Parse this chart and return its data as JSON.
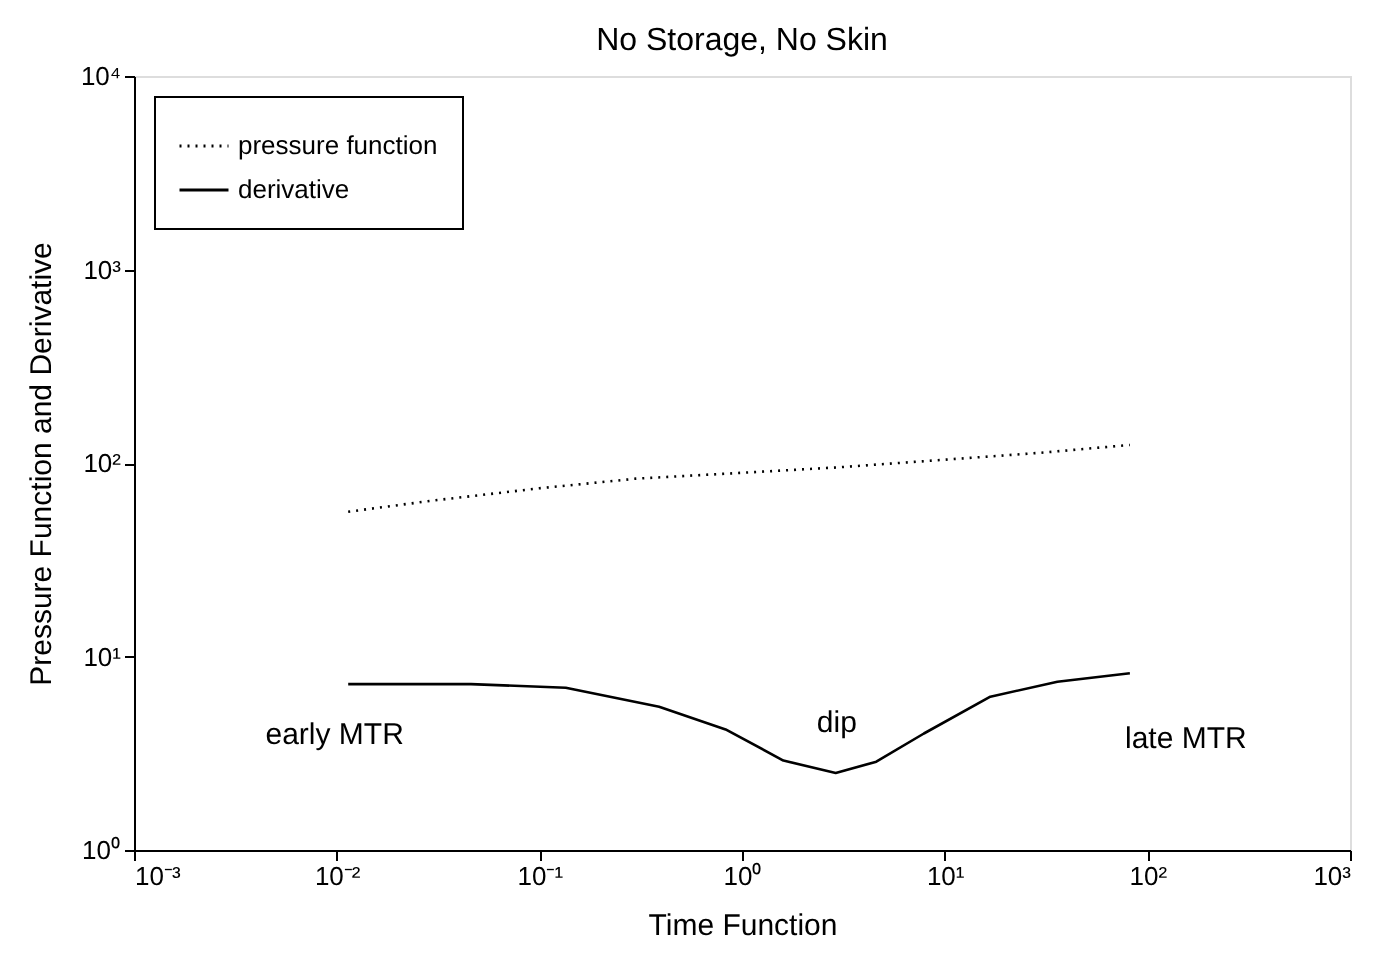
{
  "chart_data": {
    "type": "line",
    "title": "No Storage, No Skin",
    "xlabel": "Time Function",
    "ylabel": "Pressure Function and Derivative",
    "log": "xy",
    "grid": false,
    "legend": "top left",
    "xlim": [
      0.001,
      1000
    ],
    "ylim": [
      1,
      10000
    ],
    "xticks": [
      {
        "value": 0.001,
        "label": "10⁻³"
      },
      {
        "value": 0.01,
        "label": "10⁻²"
      },
      {
        "value": 0.1,
        "label": "10⁻¹"
      },
      {
        "value": 1,
        "label": "10⁰"
      },
      {
        "value": 10,
        "label": "10¹"
      },
      {
        "value": 100,
        "label": "10²"
      },
      {
        "value": 1000,
        "label": "10³"
      }
    ],
    "yticks": [
      {
        "value": 1,
        "label": "10⁰"
      },
      {
        "value": 10,
        "label": "10¹"
      },
      {
        "value": 100,
        "label": "10²"
      },
      {
        "value": 1000,
        "label": "10³"
      },
      {
        "value": 10000,
        "label": "10⁴"
      }
    ],
    "series": [
      {
        "name": "pressure function",
        "color": "#000000",
        "line_style": "dotted",
        "x": [
          0.0114,
          0.03,
          0.1,
          0.3,
          1,
          3,
          10,
          30,
          82
        ],
        "values": [
          56,
          64,
          74,
          83,
          89,
          95,
          104,
          113,
          124
        ]
      },
      {
        "name": "derivative",
        "color": "#000000",
        "line_style": "solid",
        "x": [
          0.0114,
          0.046,
          0.135,
          0.39,
          0.83,
          1.6,
          2.9,
          4.6,
          7.9,
          16.8,
          36,
          82
        ],
        "values": [
          7.2,
          7.2,
          6.9,
          5.5,
          4.2,
          2.9,
          2.5,
          2.86,
          4.0,
          6.2,
          7.4,
          8.2
        ]
      }
    ],
    "annotations": [
      "early MTR",
      "dip",
      "late MTR"
    ]
  }
}
